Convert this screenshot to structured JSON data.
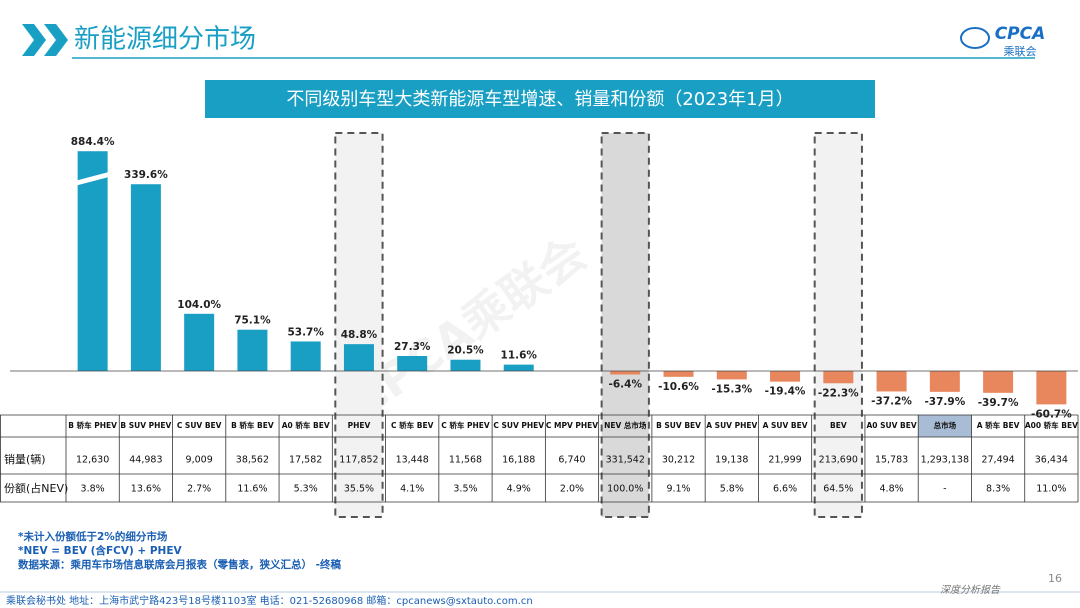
{
  "header": {
    "title": "新能源细分市场",
    "logo_text": "CPCA",
    "logo_subtext": "乘联会"
  },
  "chart_data": {
    "type": "bar",
    "title": "不同级别车型大类新能源车型增速、销量和份额（2023年1月）",
    "watermark": "CPCA乘联会",
    "categories": [
      "B 轿车 PHEV",
      "B SUV PHEV",
      "C SUV BEV",
      "B 轿车 BEV",
      "A0 轿车 BEV",
      "PHEV",
      "C 轿车 BEV",
      "C 轿车 PHEV",
      "C SUV PHEV",
      "C MPV PHEV",
      "NEV 总市场",
      "B SUV BEV",
      "A SUV PHEV",
      "A SUV BEV",
      "BEV",
      "A0 SUV BEV",
      "总市场",
      "A 轿车 BEV",
      "A00 轿车 BEV"
    ],
    "values": [
      884.4,
      339.6,
      104.0,
      75.1,
      53.7,
      48.8,
      27.3,
      20.5,
      11.6,
      null,
      -6.4,
      -10.6,
      -15.3,
      -19.4,
      -22.3,
      -37.2,
      -37.9,
      -39.7,
      -60.7
    ],
    "value_labels": [
      "884.4%",
      "339.6%",
      "104.0%",
      "75.1%",
      "53.7%",
      "48.8%",
      "27.3%",
      "20.5%",
      "11.6%",
      null,
      "-6.4%",
      "-10.6%",
      "-15.3%",
      "-19.4%",
      "-22.3%",
      "-37.2%",
      "-37.9%",
      "-39.7%",
      "-60.7%"
    ],
    "color": "#1a9fc4",
    "negative_color": "#e8875e"
  },
  "table": {
    "row_headers": [
      "销量(辆)",
      "份额(占NEV)"
    ],
    "rows": [
      [
        "12,630",
        "44,983",
        "9,009",
        "38,562",
        "17,582",
        "117,852",
        "13,448",
        "11,568",
        "16,188",
        "6,740",
        "331,542",
        "30,212",
        "19,138",
        "21,999",
        "213,690",
        "15,783",
        "1,293,138",
        "27,494",
        "36,434"
      ],
      [
        "3.8%",
        "13.6%",
        "2.7%",
        "11.6%",
        "5.3%",
        "35.5%",
        "4.1%",
        "3.5%",
        "4.9%",
        "2.0%",
        "100.0%",
        "9.1%",
        "5.8%",
        "6.6%",
        "64.5%",
        "4.8%",
        "-",
        "8.3%",
        "11.0%"
      ]
    ]
  },
  "notes": [
    "*未计入份额低于2%的细分市场",
    "*NEV = BEV (含FCV) + PHEV",
    "数据来源：乘用车市场信息联席会月报表（零售表，狭义汇总） -终稿"
  ],
  "footer": {
    "contact": "乘联会秘书处   地址：上海市武宁路423号18号楼1103室  电话：021-52680968   邮箱：cpcanews@sxtauto.com.cn",
    "report": "深度分析报告",
    "page": "16"
  }
}
